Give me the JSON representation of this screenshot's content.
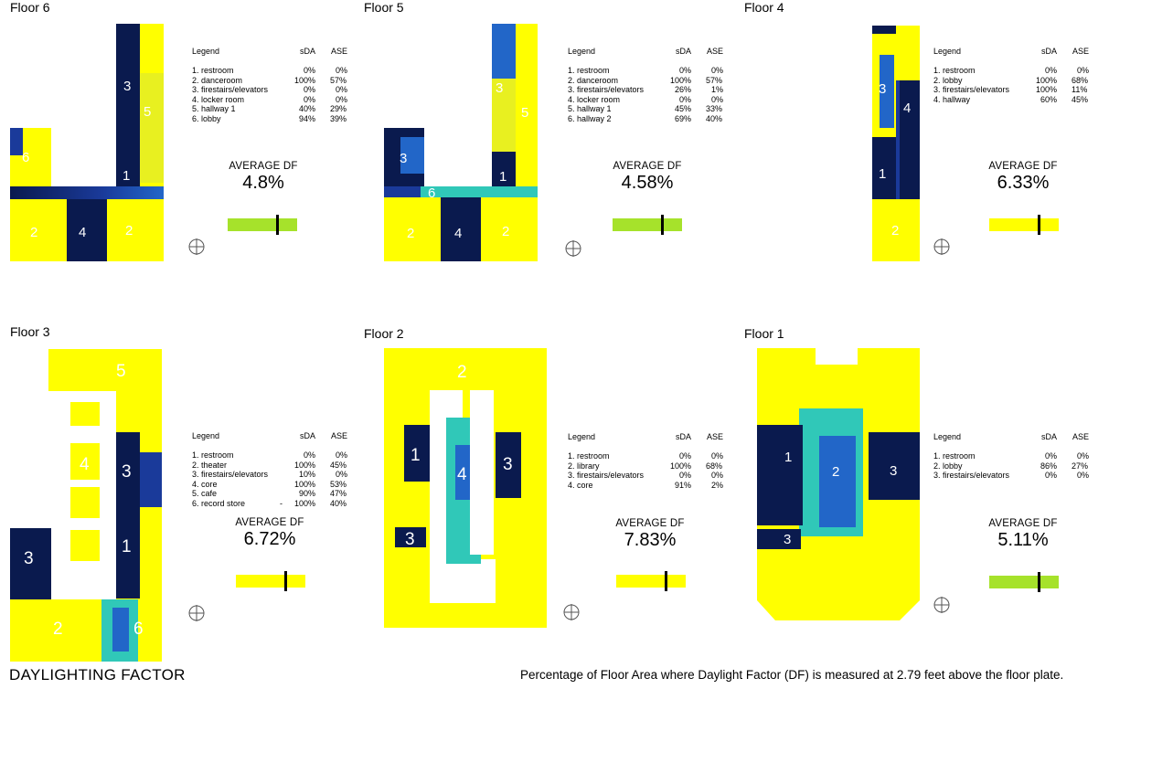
{
  "colors": {
    "bright": "#ffff00",
    "dark": "#0a1a4e",
    "mid": "#2266c8",
    "cyan": "#30c8b8",
    "green_bar": "#a6e22b",
    "yellow_bar": "#ffff00"
  },
  "legend_headers": {
    "title": "Legend",
    "sda": "sDA",
    "ase": "ASE"
  },
  "avg_label": "AVERAGE DF",
  "floors": [
    {
      "title": "Floor 6",
      "avg_df": "4.8%",
      "df_level": 0.72,
      "bar_color": "green",
      "rooms": [
        {
          "name": "1. restroom",
          "sda": "0%",
          "ase": "0%"
        },
        {
          "name": "2. danceroom",
          "sda": "100%",
          "ase": "57%"
        },
        {
          "name": "3. firestairs/elevators",
          "sda": "0%",
          "ase": "0%"
        },
        {
          "name": "4. locker room",
          "sda": "0%",
          "ase": "0%"
        },
        {
          "name": "5. hallway 1",
          "sda": "40%",
          "ase": "29%"
        },
        {
          "name": "6. lobby",
          "sda": "94%",
          "ase": "39%"
        }
      ]
    },
    {
      "title": "Floor 5",
      "avg_df": "4.58%",
      "df_level": 0.72,
      "bar_color": "green",
      "rooms": [
        {
          "name": "1. restroom",
          "sda": "0%",
          "ase": "0%"
        },
        {
          "name": "2. danceroom",
          "sda": "100%",
          "ase": "57%"
        },
        {
          "name": "3. firestairs/elevators",
          "sda": "26%",
          "ase": "1%"
        },
        {
          "name": "4. locker room",
          "sda": "0%",
          "ase": "0%"
        },
        {
          "name": "5. hallway 1",
          "sda": "45%",
          "ase": "33%"
        },
        {
          "name": "6. hallway 2",
          "sda": "69%",
          "ase": "40%"
        }
      ]
    },
    {
      "title": "Floor 4",
      "avg_df": "6.33%",
      "df_level": 0.72,
      "bar_color": "yellow",
      "rooms": [
        {
          "name": "1. restroom",
          "sda": "0%",
          "ase": "0%"
        },
        {
          "name": "2. lobby",
          "sda": "100%",
          "ase": "68%"
        },
        {
          "name": "3. firestairs/elevators",
          "sda": "100%",
          "ase": "11%"
        },
        {
          "name": "4. hallway",
          "sda": "60%",
          "ase": "45%"
        }
      ]
    },
    {
      "title": "Floor 3",
      "avg_df": "6.72%",
      "df_level": 0.72,
      "bar_color": "yellow",
      "rooms": [
        {
          "name": "1. restroom",
          "sda": "0%",
          "ase": "0%"
        },
        {
          "name": "2. theater",
          "sda": "100%",
          "ase": "45%"
        },
        {
          "name": "3. firestairs/elevators",
          "sda": "10%",
          "ase": "0%"
        },
        {
          "name": "4. core",
          "sda": "100%",
          "ase": "53%"
        },
        {
          "name": "5. cafe",
          "sda": "90%",
          "ase": "47%"
        },
        {
          "name": "6. record store",
          "dash": "-",
          "sda": "100%",
          "ase": "40%"
        }
      ]
    },
    {
      "title": "Floor 2",
      "avg_df": "7.83%",
      "df_level": 0.72,
      "bar_color": "yellow",
      "rooms": [
        {
          "name": "1. restroom",
          "sda": "0%",
          "ase": "0%"
        },
        {
          "name": "2. library",
          "sda": "100%",
          "ase": "68%"
        },
        {
          "name": "3. firestairs/elevators",
          "sda": "0%",
          "ase": "0%"
        },
        {
          "name": "4. core",
          "sda": "91%",
          "ase": "2%"
        }
      ]
    },
    {
      "title": "Floor 1",
      "avg_df": "5.11%",
      "df_level": 0.72,
      "bar_color": "green",
      "rooms": [
        {
          "name": "1. restroom",
          "sda": "0%",
          "ase": "0%"
        },
        {
          "name": "2. lobby",
          "sda": "86%",
          "ase": "27%"
        },
        {
          "name": "3. firestairs/elevators",
          "sda": "0%",
          "ase": "0%"
        }
      ]
    }
  ],
  "plan_labels": {
    "f6": [
      "3",
      "5",
      "6",
      "1",
      "2",
      "4",
      "2"
    ],
    "f5": [
      "3",
      "5",
      "3",
      "1",
      "6",
      "2",
      "4",
      "2"
    ],
    "f4": [
      "3",
      "4",
      "1",
      "2"
    ],
    "f3": [
      "5",
      "4",
      "3",
      "1",
      "3",
      "2",
      "6"
    ],
    "f2": [
      "2",
      "1",
      "4",
      "3",
      "3"
    ],
    "f1": [
      "1",
      "2",
      "3",
      "3"
    ]
  },
  "footer": {
    "title": "DAYLIGHTING FACTOR",
    "note": "Percentage of Floor Area where Daylight Factor (DF) is measured at 2.79 feet above the floor plate."
  }
}
